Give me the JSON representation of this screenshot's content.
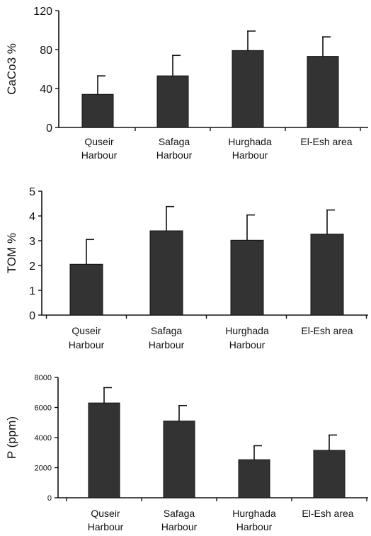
{
  "chart_data": [
    {
      "type": "bar",
      "ylabel": "CaCo3 %",
      "categories": [
        [
          "Quseir",
          "Harbour"
        ],
        [
          "Safaga",
          "Harbour"
        ],
        [
          "Hurghada",
          "Harbour"
        ],
        [
          "El-Esh area"
        ]
      ],
      "values": [
        34,
        53,
        79,
        73
      ],
      "errors": [
        19,
        21,
        20,
        20
      ],
      "ylim": [
        0,
        120
      ],
      "yticks": [
        "0",
        "40",
        "80",
        "120"
      ],
      "grid": false,
      "bar_color": "#333333"
    },
    {
      "type": "bar",
      "ylabel": "TOM %",
      "categories": [
        [
          "Quseir",
          "Harbour"
        ],
        [
          "Safaga",
          "Harbour"
        ],
        [
          "Hurghada",
          "Harbour"
        ],
        [
          "El-Esh area"
        ]
      ],
      "values": [
        2.05,
        3.4,
        3.02,
        3.27
      ],
      "errors": [
        1.0,
        0.98,
        1.02,
        0.97
      ],
      "ylim": [
        0,
        5
      ],
      "yticks": [
        "0",
        "1",
        "2",
        "3",
        "4",
        "5"
      ],
      "grid": false,
      "bar_color": "#333333"
    },
    {
      "type": "bar",
      "ylabel": "P (ppm)",
      "categories": [
        [
          "Quseir",
          "Harbour"
        ],
        [
          "Safaga",
          "Harbour"
        ],
        [
          "Hurghada",
          "Harbour"
        ],
        [
          "El-Esh area"
        ]
      ],
      "values": [
        6300,
        5100,
        2530,
        3150
      ],
      "errors": [
        1020,
        1030,
        930,
        1020
      ],
      "ylim": [
        0,
        8000
      ],
      "yticks": [
        "0",
        "2000",
        "4000",
        "6000",
        "8000"
      ],
      "grid": false,
      "bar_color": "#333333"
    }
  ]
}
